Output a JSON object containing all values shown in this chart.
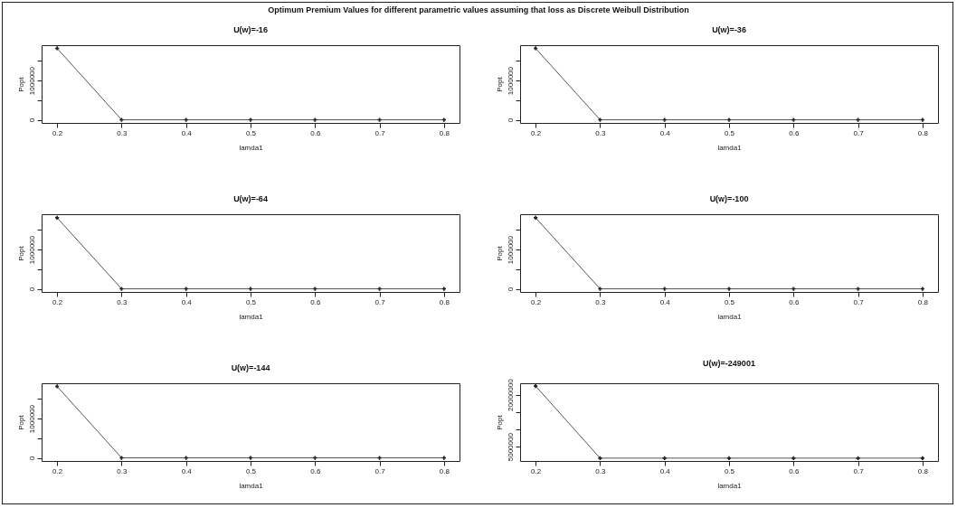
{
  "chart_data": [
    {
      "type": "line",
      "title": "U(w)=-16",
      "xlabel": "lamda1",
      "ylabel": "Popt",
      "annotations": [
        "Optimum Premium Values for different parametric values assuming that loss as Discrete Weibull Distribution"
      ],
      "x": [
        0.2,
        0.3,
        0.4,
        0.5,
        0.6,
        0.7,
        0.8
      ],
      "series": [
        {
          "color": "#555555",
          "values": [
            1820000,
            0,
            0,
            0,
            0,
            0,
            0
          ]
        }
      ],
      "marker": "cross",
      "xlim": [
        0.176,
        0.824
      ],
      "xticks": [
        0.2,
        0.3,
        0.4,
        0.5,
        0.6,
        0.7,
        0.8
      ],
      "ylim": [
        -80000,
        1900000
      ],
      "yticks": [
        0,
        {
          "value": 500000,
          "label": null
        },
        1000000,
        {
          "value": 1500000,
          "label": null
        }
      ]
    },
    {
      "type": "line",
      "title": "U(w)=-36",
      "xlabel": "lamda1",
      "ylabel": "Popt",
      "x": [
        0.2,
        0.3,
        0.4,
        0.5,
        0.6,
        0.7,
        0.8
      ],
      "series": [
        {
          "color": "#555555",
          "values": [
            1820000,
            0,
            0,
            0,
            0,
            0,
            0
          ]
        }
      ],
      "marker": "cross",
      "xlim": [
        0.176,
        0.824
      ],
      "xticks": [
        0.2,
        0.3,
        0.4,
        0.5,
        0.6,
        0.7,
        0.8
      ],
      "ylim": [
        -80000,
        1900000
      ],
      "yticks": [
        0,
        {
          "value": 500000,
          "label": null
        },
        1000000,
        {
          "value": 1500000,
          "label": null
        }
      ]
    },
    {
      "type": "line",
      "title": "U(w)=-64",
      "xlabel": "lamda1",
      "ylabel": "Popt",
      "x": [
        0.2,
        0.3,
        0.4,
        0.5,
        0.6,
        0.7,
        0.8
      ],
      "series": [
        {
          "color": "#555555",
          "values": [
            1810000,
            0,
            0,
            0,
            0,
            0,
            0
          ]
        }
      ],
      "marker": "cross",
      "xlim": [
        0.176,
        0.824
      ],
      "xticks": [
        0.2,
        0.3,
        0.4,
        0.5,
        0.6,
        0.7,
        0.8
      ],
      "ylim": [
        -80000,
        1900000
      ],
      "yticks": [
        0,
        {
          "value": 500000,
          "label": null
        },
        1000000,
        {
          "value": 1500000,
          "label": null
        }
      ]
    },
    {
      "type": "line",
      "title": "U(w)=-100",
      "xlabel": "lamda1",
      "ylabel": "Popt",
      "x": [
        0.2,
        0.3,
        0.4,
        0.5,
        0.6,
        0.7,
        0.8
      ],
      "series": [
        {
          "color": "#555555",
          "values": [
            1810000,
            0,
            0,
            0,
            0,
            0,
            0
          ]
        }
      ],
      "marker": "cross",
      "xlim": [
        0.176,
        0.824
      ],
      "xticks": [
        0.2,
        0.3,
        0.4,
        0.5,
        0.6,
        0.7,
        0.8
      ],
      "ylim": [
        -80000,
        1900000
      ],
      "yticks": [
        0,
        {
          "value": 500000,
          "label": null
        },
        1000000,
        {
          "value": 1500000,
          "label": null
        }
      ]
    },
    {
      "type": "line",
      "title": "U(w)=-144",
      "xlabel": "lamda1",
      "ylabel": "Popt",
      "x": [
        0.2,
        0.3,
        0.4,
        0.5,
        0.6,
        0.7,
        0.8
      ],
      "series": [
        {
          "color": "#555555",
          "values": [
            1820000,
            0,
            0,
            0,
            0,
            0,
            0
          ]
        }
      ],
      "marker": "cross",
      "xlim": [
        0.176,
        0.824
      ],
      "xticks": [
        0.2,
        0.3,
        0.4,
        0.5,
        0.6,
        0.7,
        0.8
      ],
      "ylim": [
        -80000,
        1900000
      ],
      "yticks": [
        0,
        {
          "value": 500000,
          "label": null
        },
        1000000,
        {
          "value": 1500000,
          "label": null
        }
      ]
    },
    {
      "type": "line",
      "title": "U(w)=-249001",
      "xlabel": "lamda1",
      "ylabel": "Popt",
      "x": [
        0.2,
        0.3,
        0.4,
        0.5,
        0.6,
        0.7,
        0.8
      ],
      "series": [
        {
          "color": "#555555",
          "values": [
            22500000,
            1700000,
            1700000,
            1700000,
            1700000,
            1700000,
            1700000
          ]
        }
      ],
      "marker": "cross",
      "xlim": [
        0.176,
        0.824
      ],
      "xticks": [
        0.2,
        0.3,
        0.4,
        0.5,
        0.6,
        0.7,
        0.8
      ],
      "ylim": [
        870000,
        23300000
      ],
      "yticks": [
        5000000,
        {
          "value": 10000000,
          "label": null
        },
        {
          "value": 15000000,
          "label": null
        },
        20000000
      ]
    }
  ]
}
